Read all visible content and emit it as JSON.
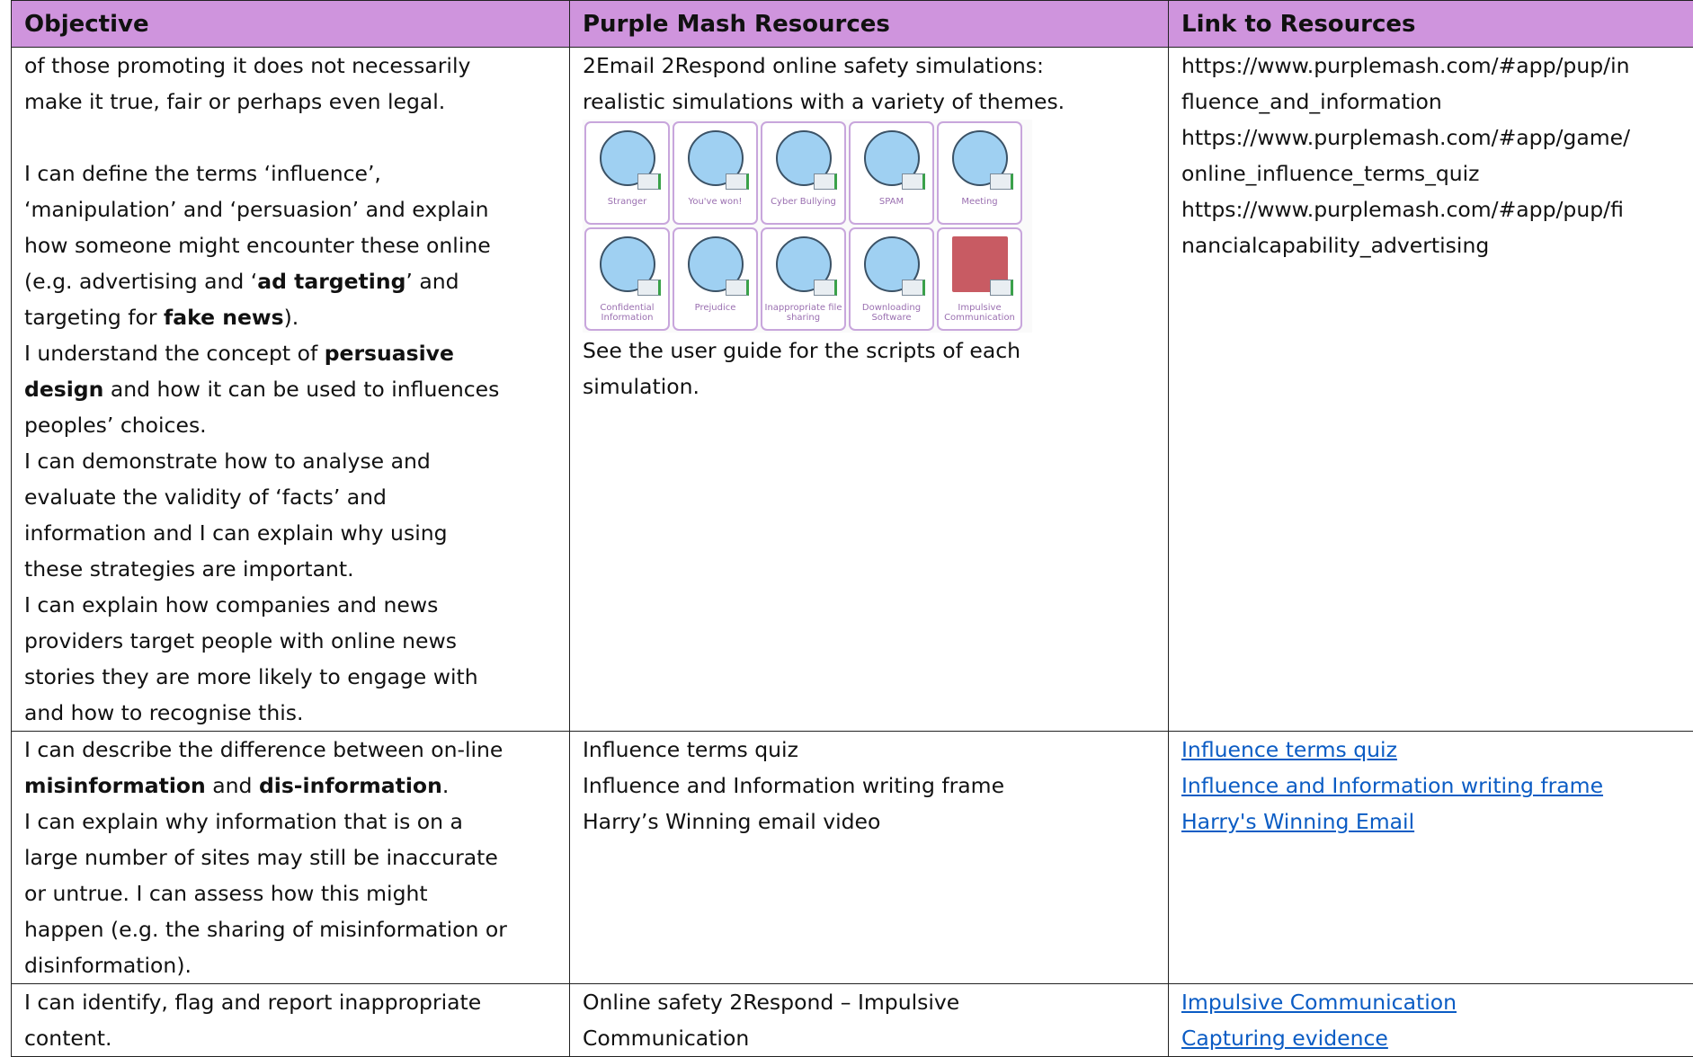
{
  "table": {
    "header": [
      "Objective",
      "Purple Mash Resources",
      "Link to Resources"
    ],
    "rows": [
      [
        {
          "paragraphs": [
            [
              [
                {
                  "text": "of those promoting it does not necessarily"
                }
              ],
              [
                {
                  "text": "make it true, fair or perhaps even legal."
                }
              ]
            ],
            [
              [
                {
                  "text": "I can define the terms ‘influence’,"
                }
              ],
              [
                {
                  "text": "‘manipulation’ and ‘persuasion’ and explain"
                }
              ],
              [
                {
                  "text": "how someone might encounter these online"
                }
              ],
              [
                {
                  "text": "(e.g. advertising and ‘"
                },
                {
                  "text": "ad targeting",
                  "bold": true
                },
                {
                  "text": "’ and"
                }
              ],
              [
                {
                  "text": "targeting for "
                },
                {
                  "text": "fake news",
                  "bold": true
                },
                {
                  "text": ")."
                }
              ],
              [
                {
                  "text": "I understand the concept of "
                },
                {
                  "text": "persuasive",
                  "bold": true
                }
              ],
              [
                {
                  "text": "design",
                  "bold": true
                },
                {
                  "text": " and how it can be used to influences"
                }
              ],
              [
                {
                  "text": "peoples’ choices."
                }
              ],
              [
                {
                  "text": "I can demonstrate how to analyse and"
                }
              ],
              [
                {
                  "text": "evaluate the validity of ‘facts’ and"
                }
              ],
              [
                {
                  "text": "information and I can explain why using"
                }
              ],
              [
                {
                  "text": "these strategies are important."
                }
              ],
              [
                {
                  "text": "I can explain how companies and news"
                }
              ],
              [
                {
                  "text": "providers target people with online news"
                }
              ],
              [
                {
                  "text": "stories they are more likely to engage with"
                }
              ],
              [
                {
                  "text": "and how to recognise this."
                }
              ]
            ]
          ]
        },
        {
          "paragraphs": [
            [
              [
                {
                  "text": "2Email 2Respond online safety simulations:"
                }
              ],
              [
                {
                  "text": "realistic simulations with a variety of themes."
                }
              ]
            ],
            [
              [
                {
                  "text": "See the user guide for the scripts of each"
                }
              ],
              [
                {
                  "text": "simulation."
                }
              ]
            ]
          ],
          "simulations": [
            "Stranger",
            "You've won!",
            "Cyber Bullying",
            "SPAM",
            "Meeting",
            "Confidential Information",
            "Prejudice",
            "Inappropriate file sharing",
            "Downloading Software",
            "Impulsive Communication"
          ]
        },
        {
          "paragraphs": [
            [
              [
                {
                  "text": "https://www.purplemash.com/#app/pup/in"
                }
              ],
              [
                {
                  "text": "fluence_and_information"
                }
              ],
              [
                {
                  "text": "https://www.purplemash.com/#app/game/"
                }
              ],
              [
                {
                  "text": "online_influence_terms_quiz"
                }
              ],
              [
                {
                  "text": "https://www.purplemash.com/#app/pup/fi"
                }
              ],
              [
                {
                  "text": "nancialcapability_advertising"
                }
              ]
            ]
          ]
        }
      ],
      [
        {
          "paragraphs": [
            [
              [
                {
                  "text": "I can describe the difference between on-line"
                }
              ],
              [
                {
                  "text": "misinformation",
                  "bold": true
                },
                {
                  "text": " and "
                },
                {
                  "text": "dis-information",
                  "bold": true
                },
                {
                  "text": "."
                }
              ],
              [
                {
                  "text": "I can explain why information that is on a"
                }
              ],
              [
                {
                  "text": "large number of sites may still be inaccurate"
                }
              ],
              [
                {
                  "text": "or untrue. I can assess how this might"
                }
              ],
              [
                {
                  "text": "happen (e.g. the sharing of misinformation or"
                }
              ],
              [
                {
                  "text": "disinformation)."
                }
              ]
            ]
          ]
        },
        {
          "paragraphs": [
            [
              [
                {
                  "text": "Influence terms quiz"
                }
              ],
              [
                {
                  "text": "Influence and Information writing frame"
                }
              ],
              [
                {
                  "text": "Harry’s Winning email video"
                }
              ]
            ]
          ]
        },
        {
          "paragraphs": [
            [
              [
                {
                  "text": "Influence terms quiz",
                  "link": true
                }
              ],
              [
                {
                  "text": "Influence and Information writing frame",
                  "link": true
                }
              ],
              [
                {
                  "text": "Harry's Winning Email",
                  "link": true
                }
              ]
            ]
          ]
        }
      ],
      [
        {
          "paragraphs": [
            [
              [
                {
                  "text": "I can identify, flag and report inappropriate"
                }
              ],
              [
                {
                  "text": "content."
                }
              ]
            ]
          ]
        },
        {
          "paragraphs": [
            [
              [
                {
                  "text": "Online safety 2Respond – Impulsive"
                }
              ],
              [
                {
                  "text": "Communication"
                }
              ]
            ]
          ]
        },
        {
          "paragraphs": [
            [
              [
                {
                  "text": "Impulsive Communication",
                  "link": true
                }
              ],
              [
                {
                  "text": "Capturing evidence",
                  "link": true
                }
              ]
            ]
          ]
        }
      ]
    ]
  }
}
